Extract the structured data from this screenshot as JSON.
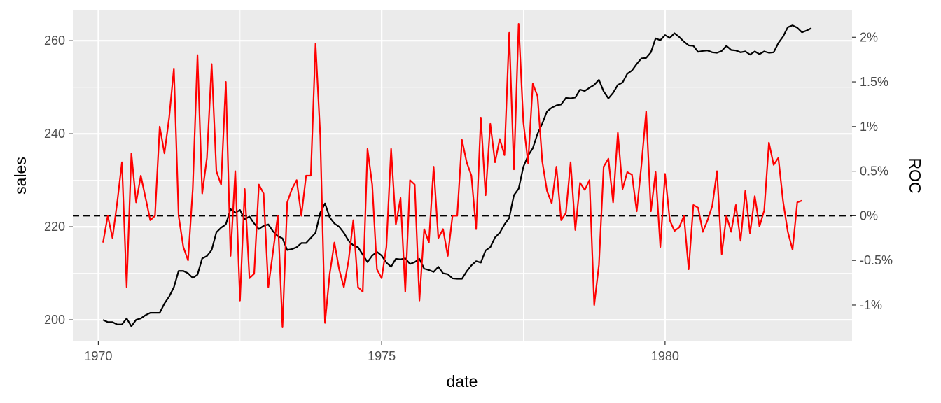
{
  "chart_data": {
    "type": "line",
    "xlabel": "date",
    "ylabel": "sales",
    "y2label": "ROC",
    "grid": true,
    "panel_background": "#ebebeb",
    "x_ticks": [
      {
        "value": 1970,
        "label": "1970"
      },
      {
        "value": 1975,
        "label": "1975"
      },
      {
        "value": 1980,
        "label": "1980"
      }
    ],
    "xlim": [
      1969.55,
      1983.3
    ],
    "ylim": [
      195.5,
      266.5
    ],
    "y_ticks": [
      {
        "value": 200,
        "label": "200"
      },
      {
        "value": 220,
        "label": "220"
      },
      {
        "value": 240,
        "label": "240"
      },
      {
        "value": 260,
        "label": "260"
      }
    ],
    "y2lim": [
      -1.4,
      2.3
    ],
    "y2_ticks": [
      {
        "value": -1.0,
        "label": "-1%"
      },
      {
        "value": -0.5,
        "label": "-0.5%"
      },
      {
        "value": 0.0,
        "label": "0%"
      },
      {
        "value": 0.5,
        "label": "0.5%"
      },
      {
        "value": 1.0,
        "label": "1%"
      },
      {
        "value": 1.5,
        "label": "1.5%"
      },
      {
        "value": 2.0,
        "label": "2%"
      }
    ],
    "x_start": 1970.083,
    "x_step": 0.0833333,
    "reference_line": {
      "axis": "y2",
      "value": 0,
      "style": "dashed",
      "color": "#000000"
    },
    "series": [
      {
        "axis": "y",
        "color": "#000000",
        "values": [
          200.0,
          199.5,
          199.5,
          199.0,
          199.0,
          200.3,
          198.6,
          200.0,
          200.3,
          201.0,
          201.5,
          201.5,
          201.5,
          203.5,
          205.0,
          207.0,
          210.5,
          210.5,
          210.0,
          209.0,
          209.7,
          213.2,
          213.7,
          215.0,
          218.8,
          219.8,
          220.5,
          223.8,
          223.0,
          223.6,
          221.6,
          222.2,
          220.7,
          219.5,
          220.2,
          220.5,
          219.0,
          218.0,
          217.5,
          215.0,
          215.2,
          215.6,
          216.5,
          216.5,
          217.6,
          218.7,
          223.0,
          225.0,
          222.0,
          220.7,
          220.0,
          218.7,
          217.0,
          216.0,
          215.6,
          214.0,
          212.4,
          213.8,
          214.6,
          213.8,
          212.3,
          211.4,
          213.1,
          213.0,
          213.2,
          212.0,
          212.4,
          213.1,
          211.0,
          210.7,
          210.3,
          211.4,
          210.0,
          209.8,
          208.9,
          208.8,
          208.8,
          210.4,
          211.7,
          212.6,
          212.3,
          214.9,
          215.6,
          217.7,
          218.7,
          220.5,
          221.9,
          226.8,
          228.2,
          232.9,
          235.3,
          236.9,
          240.0,
          242.2,
          244.8,
          245.6,
          246.1,
          246.3,
          247.7,
          247.6,
          247.8,
          249.5,
          249.2,
          249.9,
          250.5,
          251.6,
          249.1,
          247.6,
          248.8,
          250.5,
          251.0,
          252.9,
          253.6,
          255.0,
          256.2,
          256.3,
          257.5,
          260.5,
          260.1,
          261.2,
          260.6,
          261.6,
          260.8,
          259.8,
          259.0,
          258.9,
          257.6,
          257.8,
          257.9,
          257.5,
          257.4,
          257.8,
          258.9,
          258.0,
          257.9,
          257.5,
          257.7,
          257.0,
          257.7,
          257.1,
          257.7,
          257.4,
          257.5,
          259.5,
          260.9,
          262.9,
          263.3,
          262.8,
          261.8,
          262.2,
          262.7
        ]
      },
      {
        "axis": "y2",
        "color": "#ff0000",
        "values": [
          -0.3,
          0.0,
          -0.25,
          0.15,
          0.6,
          -0.8,
          0.7,
          0.15,
          0.45,
          0.2,
          -0.05,
          0.0,
          1.0,
          0.7,
          1.1,
          1.65,
          0.0,
          -0.35,
          -0.5,
          0.3,
          1.8,
          0.25,
          0.65,
          1.7,
          0.5,
          0.35,
          1.5,
          -0.45,
          0.5,
          -0.95,
          0.3,
          -0.7,
          -0.65,
          0.35,
          0.25,
          -0.8,
          -0.4,
          0.0,
          -1.25,
          0.15,
          0.3,
          0.4,
          0.0,
          0.45,
          0.45,
          1.93,
          0.9,
          -1.2,
          -0.65,
          -0.3,
          -0.6,
          -0.8,
          -0.5,
          -0.05,
          -0.8,
          -0.85,
          0.75,
          0.35,
          -0.6,
          -0.7,
          -0.35,
          0.75,
          -0.1,
          0.2,
          -0.85,
          0.4,
          0.35,
          -0.95,
          -0.15,
          -0.3,
          0.55,
          -0.25,
          -0.15,
          -0.45,
          0.0,
          0.0,
          0.85,
          0.6,
          0.45,
          -0.15,
          1.1,
          0.23,
          1.03,
          0.6,
          0.86,
          0.68,
          2.05,
          0.52,
          2.15,
          1.05,
          0.59,
          1.48,
          1.34,
          0.61,
          0.28,
          0.14,
          0.55,
          -0.05,
          0.03,
          0.6,
          -0.16,
          0.37,
          0.29,
          0.4,
          -1.0,
          -0.55,
          0.55,
          0.64,
          0.15,
          0.93,
          0.3,
          0.49,
          0.46,
          0.05,
          0.57,
          1.17,
          0.05,
          0.49,
          -0.35,
          0.47,
          -0.05,
          -0.17,
          -0.13,
          0.0,
          -0.6,
          0.12,
          0.09,
          -0.18,
          -0.05,
          0.11,
          0.5,
          -0.43,
          0.0,
          -0.18,
          0.12,
          -0.28,
          0.28,
          -0.2,
          0.22,
          -0.12,
          0.06,
          0.82,
          0.57,
          0.65,
          0.16,
          -0.18,
          -0.38,
          0.15,
          0.17
        ]
      }
    ]
  }
}
